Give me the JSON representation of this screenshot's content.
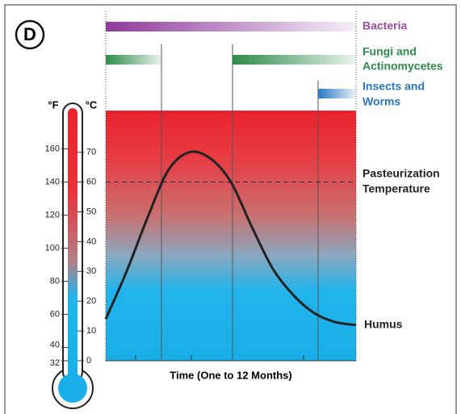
{
  "chart_data": {
    "type": "line",
    "panel": "D",
    "organisms": [
      {
        "lines": [
          "Bacteria"
        ],
        "color": "#9b4aa6"
      },
      {
        "lines": [
          "Fungi and",
          "Actinomycetes"
        ],
        "color": "#2e8b4a"
      },
      {
        "lines": [
          "Insects and",
          "Worms"
        ],
        "color": "#2a78c2"
      }
    ],
    "x_label": "Time (One to 12 Months)",
    "y_label": "°C",
    "y2_label": "°F",
    "categories": [
      null,
      null,
      null,
      null,
      null,
      null,
      null,
      null,
      null,
      null,
      null,
      null,
      null
    ],
    "series": [
      {
        "color": "#222222",
        "values": [
          14,
          30,
          48,
          64,
          70,
          68,
          60,
          45,
          31,
          22,
          16,
          13,
          12
        ]
      }
    ],
    "end_label": "Humus",
    "reference_line": {
      "value": 60,
      "lines": [
        "Pasteurization",
        "Temperature"
      ]
    },
    "ylim": [
      0,
      84
    ],
    "yticks": [
      0,
      10,
      20,
      30,
      40,
      50,
      60,
      70
    ],
    "y2lim": [
      32,
      183.2
    ],
    "y2ticks": [
      32,
      40,
      60,
      80,
      100,
      120,
      140,
      160
    ]
  }
}
